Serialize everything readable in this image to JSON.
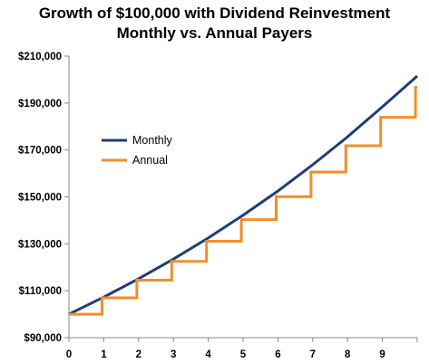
{
  "chart_data": {
    "type": "line",
    "title": "Growth of $100,000 with Dividend Reinvestment",
    "subtitle": "Monthly vs. Annual Payers",
    "xlabel": "",
    "ylabel": "",
    "xlim": [
      0,
      10
    ],
    "ylim": [
      90000,
      210000
    ],
    "x_ticks": [
      0,
      1,
      2,
      3,
      4,
      5,
      6,
      7,
      8,
      9
    ],
    "x_tick_labels": [
      "0",
      "1",
      "2",
      "3",
      "4",
      "5",
      "6",
      "7",
      "8",
      "9"
    ],
    "y_ticks": [
      90000,
      110000,
      130000,
      150000,
      170000,
      190000,
      210000
    ],
    "y_tick_labels": [
      "$90,000",
      "$110,000",
      "$130,000",
      "$150,000",
      "$170,000",
      "$190,000",
      "$210,000"
    ],
    "grid": false,
    "legend_placement": "left",
    "series": [
      {
        "name": "Monthly",
        "color": "#1F3E74",
        "x": [
          0,
          1,
          2,
          3,
          4,
          5,
          6,
          7,
          8,
          9,
          10
        ],
        "values": [
          100000,
          107300,
          115100,
          123500,
          132500,
          142200,
          152500,
          163700,
          175600,
          188400,
          201500
        ]
      },
      {
        "name": "Annual",
        "color": "#F28E2B",
        "step": "post",
        "x": [
          0,
          0.95,
          1.95,
          2.95,
          3.95,
          4.95,
          5.95,
          6.95,
          7.95,
          8.95,
          9.95
        ],
        "values": [
          100000,
          107000,
          114500,
          122500,
          131100,
          140300,
          150100,
          160600,
          171800,
          183900,
          196700
        ]
      }
    ]
  }
}
